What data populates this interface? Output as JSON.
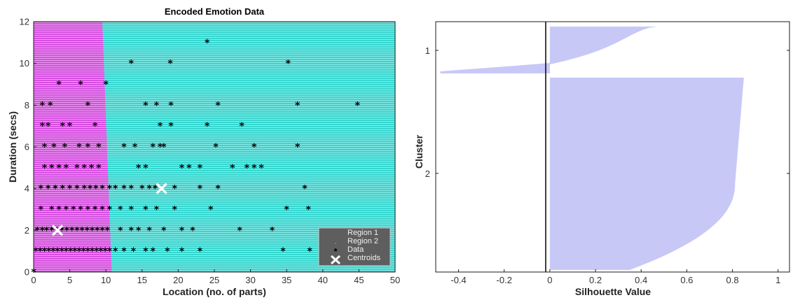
{
  "chart_data": [
    {
      "type": "scatter",
      "title": "Encoded Emotion Data",
      "xlabel": "Location (no. of parts)",
      "ylabel": "Duration (secs)",
      "xlim": [
        0,
        50
      ],
      "ylim": [
        0,
        12
      ],
      "xticks": [
        0,
        5,
        10,
        15,
        20,
        25,
        30,
        35,
        40,
        45,
        50
      ],
      "yticks": [
        0,
        2,
        4,
        6,
        8,
        10,
        12
      ],
      "regions": [
        {
          "name": "Region 1",
          "color": "#d54fe0",
          "boundary_x_at_y0": 10.8,
          "boundary_x_at_y12": 9.5
        },
        {
          "name": "Region 2",
          "color": "#36d6cf"
        }
      ],
      "legend": {
        "position": "bottom-right",
        "entries": [
          "Region 1",
          "Region 2",
          "Data",
          "Centroids"
        ]
      },
      "series": [
        {
          "name": "Data",
          "color": "#000000",
          "points": [
            [
              0,
              0
            ],
            [
              24,
              11
            ],
            [
              35.2,
              10
            ],
            [
              13.5,
              10
            ],
            [
              18.9,
              10
            ],
            [
              3.5,
              9
            ],
            [
              6.5,
              9
            ],
            [
              10,
              9
            ],
            [
              1.2,
              8
            ],
            [
              2.3,
              8
            ],
            [
              7.5,
              8
            ],
            [
              15.5,
              8
            ],
            [
              17,
              8
            ],
            [
              19,
              8
            ],
            [
              25.5,
              8
            ],
            [
              36.5,
              8
            ],
            [
              44.8,
              8
            ],
            [
              1.2,
              7
            ],
            [
              2,
              7
            ],
            [
              4,
              7
            ],
            [
              5,
              7
            ],
            [
              8.5,
              7
            ],
            [
              17.5,
              7
            ],
            [
              19,
              7
            ],
            [
              24,
              7
            ],
            [
              28.8,
              7
            ],
            [
              1.5,
              6
            ],
            [
              2.8,
              6
            ],
            [
              4.3,
              6
            ],
            [
              6.3,
              6
            ],
            [
              7.5,
              6
            ],
            [
              9,
              6
            ],
            [
              12.5,
              6
            ],
            [
              14,
              6
            ],
            [
              16.5,
              6
            ],
            [
              17.5,
              6
            ],
            [
              18,
              6
            ],
            [
              25.2,
              6
            ],
            [
              30.5,
              6
            ],
            [
              36.5,
              6
            ],
            [
              1.5,
              5
            ],
            [
              2.5,
              5
            ],
            [
              3.5,
              5
            ],
            [
              4.5,
              5
            ],
            [
              6,
              5
            ],
            [
              7,
              5
            ],
            [
              8,
              5
            ],
            [
              9,
              5
            ],
            [
              14.5,
              5
            ],
            [
              15.5,
              5
            ],
            [
              20.5,
              5
            ],
            [
              21.5,
              5
            ],
            [
              23,
              5
            ],
            [
              27.5,
              5
            ],
            [
              29.5,
              5
            ],
            [
              30.5,
              5
            ],
            [
              31.5,
              5
            ],
            [
              1,
              4
            ],
            [
              2,
              4
            ],
            [
              3,
              4
            ],
            [
              4,
              4
            ],
            [
              5,
              4
            ],
            [
              6,
              4
            ],
            [
              7,
              4
            ],
            [
              7.8,
              4
            ],
            [
              8.6,
              4
            ],
            [
              9.5,
              4
            ],
            [
              10.5,
              4
            ],
            [
              11.3,
              4
            ],
            [
              12.5,
              4
            ],
            [
              13.5,
              4
            ],
            [
              15,
              4
            ],
            [
              16,
              4
            ],
            [
              16.8,
              4
            ],
            [
              19.5,
              4
            ],
            [
              23,
              4
            ],
            [
              25.5,
              4
            ],
            [
              37.5,
              4
            ],
            [
              1,
              3
            ],
            [
              2.5,
              3
            ],
            [
              3.5,
              3
            ],
            [
              4.5,
              3
            ],
            [
              5.5,
              3
            ],
            [
              6.5,
              3
            ],
            [
              7.5,
              3
            ],
            [
              8.5,
              3
            ],
            [
              9.5,
              3
            ],
            [
              10.5,
              3
            ],
            [
              12,
              3
            ],
            [
              13.5,
              3
            ],
            [
              15.5,
              3
            ],
            [
              17,
              3
            ],
            [
              19.5,
              3
            ],
            [
              24.5,
              3
            ],
            [
              35,
              3
            ],
            [
              38,
              3
            ],
            [
              0.5,
              2
            ],
            [
              1.2,
              2
            ],
            [
              1.8,
              2
            ],
            [
              2.5,
              2
            ],
            [
              3.2,
              2
            ],
            [
              3.9,
              2
            ],
            [
              4.6,
              2
            ],
            [
              5.3,
              2
            ],
            [
              6,
              2
            ],
            [
              6.7,
              2
            ],
            [
              7.4,
              2
            ],
            [
              8.1,
              2
            ],
            [
              8.8,
              2
            ],
            [
              9.5,
              2
            ],
            [
              10.2,
              2
            ],
            [
              12,
              2
            ],
            [
              13.5,
              2
            ],
            [
              14.5,
              2
            ],
            [
              16,
              2
            ],
            [
              18,
              2
            ],
            [
              20.5,
              2
            ],
            [
              22,
              2
            ],
            [
              28.5,
              2
            ],
            [
              33,
              2
            ],
            [
              0.3,
              1
            ],
            [
              0.9,
              1
            ],
            [
              1.5,
              1
            ],
            [
              2.1,
              1
            ],
            [
              2.7,
              1
            ],
            [
              3.3,
              1
            ],
            [
              3.9,
              1
            ],
            [
              4.5,
              1
            ],
            [
              5.1,
              1
            ],
            [
              5.7,
              1
            ],
            [
              6.3,
              1
            ],
            [
              6.9,
              1
            ],
            [
              7.5,
              1
            ],
            [
              8.1,
              1
            ],
            [
              8.7,
              1
            ],
            [
              9.3,
              1
            ],
            [
              9.9,
              1
            ],
            [
              10.5,
              1
            ],
            [
              11.3,
              1
            ],
            [
              12.5,
              1
            ],
            [
              13.8,
              1
            ],
            [
              15.5,
              1
            ],
            [
              16.5,
              1
            ],
            [
              18.5,
              1
            ],
            [
              20.5,
              1
            ],
            [
              23,
              1
            ],
            [
              34.5,
              1
            ],
            [
              38.2,
              1
            ]
          ]
        },
        {
          "name": "Centroids",
          "color": "#ffffff",
          "points": [
            [
              3.3,
              2
            ],
            [
              17.7,
              4
            ]
          ]
        }
      ]
    },
    {
      "type": "area",
      "title": "",
      "xlabel": "Silhouette Value",
      "ylabel": "Cluster",
      "xlim": [
        -0.5,
        1.05
      ],
      "xticks": [
        -0.4,
        -0.2,
        0,
        0.2,
        0.4,
        0.6,
        0.8,
        1
      ],
      "xtick_labels": [
        "-0.4",
        "-0.2",
        "0",
        "0.2",
        "0.4",
        "0.6",
        "0.8",
        "1"
      ],
      "yticks": [
        "1",
        "2"
      ],
      "fill_color": "#c8c8f7",
      "clusters": [
        {
          "label": "1",
          "max": 0.47,
          "min": -0.48
        },
        {
          "label": "2",
          "max": 0.85,
          "min": 0.0
        }
      ]
    }
  ]
}
